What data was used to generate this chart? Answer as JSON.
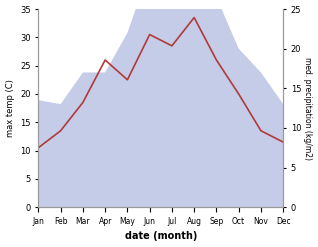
{
  "months": [
    "Jan",
    "Feb",
    "Mar",
    "Apr",
    "May",
    "Jun",
    "Jul",
    "Aug",
    "Sep",
    "Oct",
    "Nov",
    "Dec"
  ],
  "temperature": [
    10.5,
    13.5,
    18.5,
    26.0,
    22.5,
    30.5,
    28.5,
    33.5,
    26.0,
    20.0,
    13.5,
    11.5
  ],
  "precipitation": [
    13.5,
    13.0,
    17.0,
    17.0,
    22.0,
    30.0,
    30.0,
    33.0,
    26.5,
    20.0,
    17.0,
    13.0
  ],
  "temp_color": "#b03a3a",
  "precip_fill_color": "#c5cce8",
  "precip_fill_alpha": 1.0,
  "temp_ylim": [
    0,
    35
  ],
  "precip_ylim": [
    0,
    25
  ],
  "temp_yticks": [
    0,
    5,
    10,
    15,
    20,
    25,
    30,
    35
  ],
  "precip_yticks": [
    0,
    5,
    10,
    15,
    20,
    25
  ],
  "xlabel": "date (month)",
  "ylabel_left": "max temp (C)",
  "ylabel_right": "med. precipitation (kg/m2)",
  "background_color": "#ffffff"
}
